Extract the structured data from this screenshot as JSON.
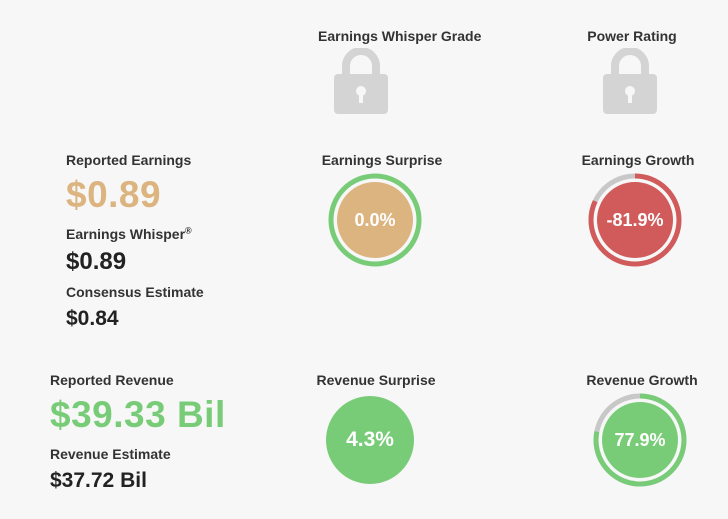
{
  "headers": {
    "grade": "Earnings Whisper Grade",
    "power": "Power Rating"
  },
  "icons": {
    "grade_lock": "lock-icon",
    "power_lock": "lock-icon"
  },
  "earnings": {
    "reported_label": "Reported Earnings",
    "reported_value": "$0.89",
    "whisper_label": "Earnings Whisper",
    "whisper_mark": "®",
    "whisper_value": "$0.89",
    "consensus_label": "Consensus Estimate",
    "consensus_value": "$0.84"
  },
  "earnings_surprise": {
    "label": "Earnings Surprise",
    "value": "0.0%",
    "fill_color": "#dcb480",
    "ring_color": "#78cc78",
    "ring_fraction": 1.0
  },
  "earnings_growth": {
    "label": "Earnings Growth",
    "value": "-81.9%",
    "fill_color": "#d15a5a",
    "ring_color": "#d15a5a",
    "track_color": "#c8c8c8",
    "ring_fraction": 0.819
  },
  "revenue": {
    "reported_label": "Reported Revenue",
    "reported_value": "$39.33 Bil",
    "estimate_label": "Revenue Estimate",
    "estimate_value": "$37.72 Bil"
  },
  "revenue_surprise": {
    "label": "Revenue Surprise",
    "value": "4.3%",
    "fill_color": "#78cc78"
  },
  "revenue_growth": {
    "label": "Revenue Growth",
    "value": "77.9%",
    "fill_color": "#78cc78",
    "ring_color": "#78cc78",
    "track_color": "#c8c8c8",
    "ring_fraction": 0.779
  }
}
